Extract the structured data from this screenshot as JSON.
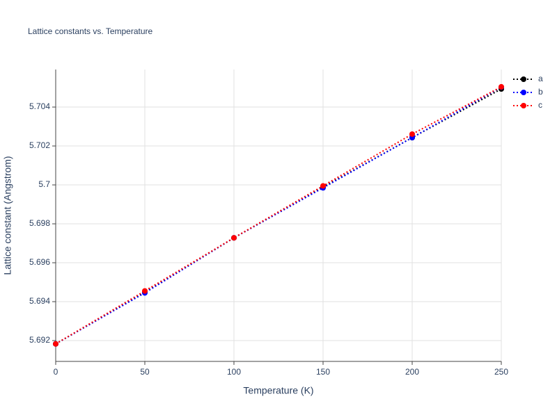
{
  "chart_data": {
    "type": "line",
    "title": "Lattice constants vs. Temperature",
    "x_label": "Temperature (K)",
    "y_label": "Lattice constant (Angstrom)",
    "x": [
      0,
      50,
      100,
      150,
      200,
      250
    ],
    "series": [
      {
        "name": "a",
        "color": "#000000",
        "values": [
          5.69183,
          5.69448,
          5.69728,
          5.69988,
          5.70243,
          5.70493
        ]
      },
      {
        "name": "b",
        "color": "#0000ff",
        "values": [
          5.69183,
          5.69445,
          5.69728,
          5.69985,
          5.70243,
          5.70503
        ]
      },
      {
        "name": "c",
        "color": "#ff0000",
        "values": [
          5.69183,
          5.69455,
          5.69728,
          5.69995,
          5.70261,
          5.70504
        ]
      }
    ],
    "xlim": [
      0,
      250
    ],
    "xticks": [
      0,
      50,
      100,
      150,
      200,
      250
    ],
    "ylim": [
      5.69093,
      5.70593
    ],
    "yticks": [
      5.692,
      5.694,
      5.696,
      5.698,
      5.7,
      5.702,
      5.704
    ],
    "grid": true,
    "legend": "right"
  }
}
